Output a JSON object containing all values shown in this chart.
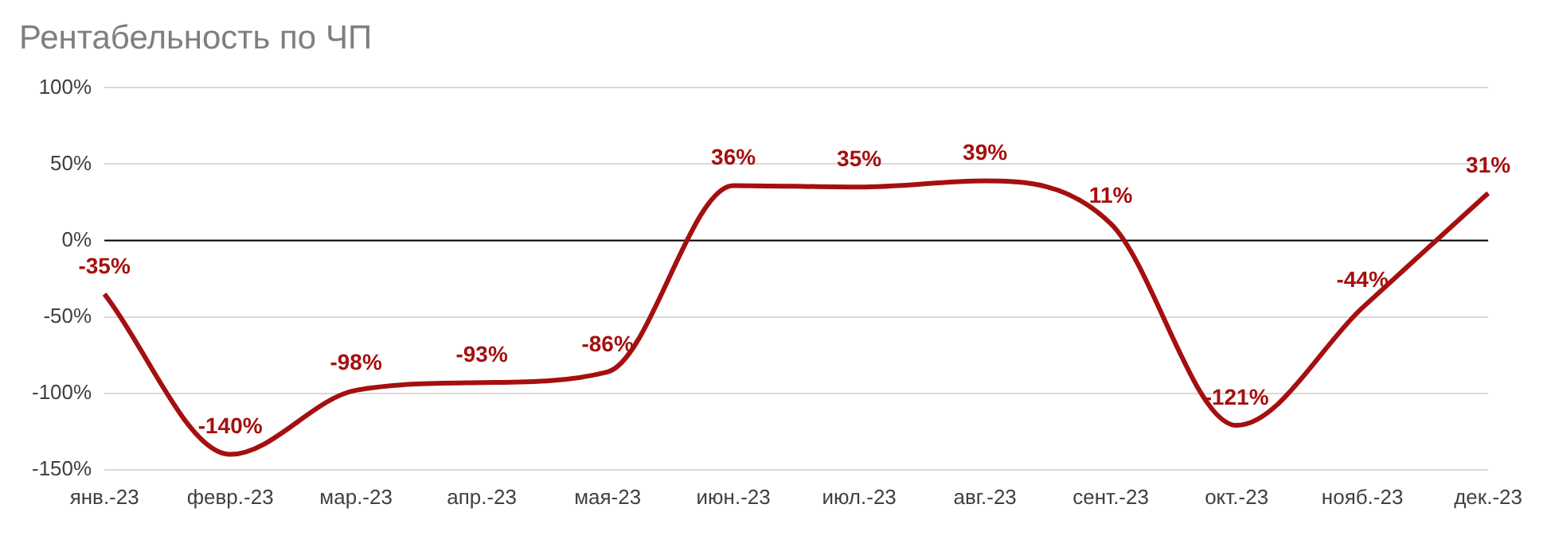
{
  "chart_data": {
    "type": "line",
    "title": "Рентабельность по ЧП",
    "categories": [
      "янв.-23",
      "февр.-23",
      "мар.-23",
      "апр.-23",
      "мая-23",
      "июн.-23",
      "июл.-23",
      "авг.-23",
      "сент.-23",
      "окт.-23",
      "нояб.-23",
      "дек.-23"
    ],
    "series": [
      {
        "color": "#a50f0f",
        "values": [
          -35,
          -140,
          -98,
          -93,
          -86,
          36,
          35,
          39,
          11,
          -121,
          -44,
          31
        ],
        "value_labels": [
          "-35%",
          "-140%",
          "-98%",
          "-93%",
          "-86%",
          "36%",
          "35%",
          "39%",
          "11%",
          "-121%",
          "-44%",
          "31%"
        ]
      }
    ],
    "ylim": [
      -150,
      100
    ],
    "yticks": [
      {
        "value": -150,
        "label": "-150%"
      },
      {
        "value": -100,
        "label": "-100%"
      },
      {
        "value": -50,
        "label": "-50%"
      },
      {
        "value": 0,
        "label": "0%"
      },
      {
        "value": 50,
        "label": "50%"
      },
      {
        "value": 100,
        "label": "100%"
      }
    ],
    "grid": "y",
    "legend": false,
    "marker": "none",
    "line_style": "solid",
    "ref_lines": [
      {
        "axis": "y",
        "value": 0,
        "color": "#000000"
      }
    ]
  }
}
